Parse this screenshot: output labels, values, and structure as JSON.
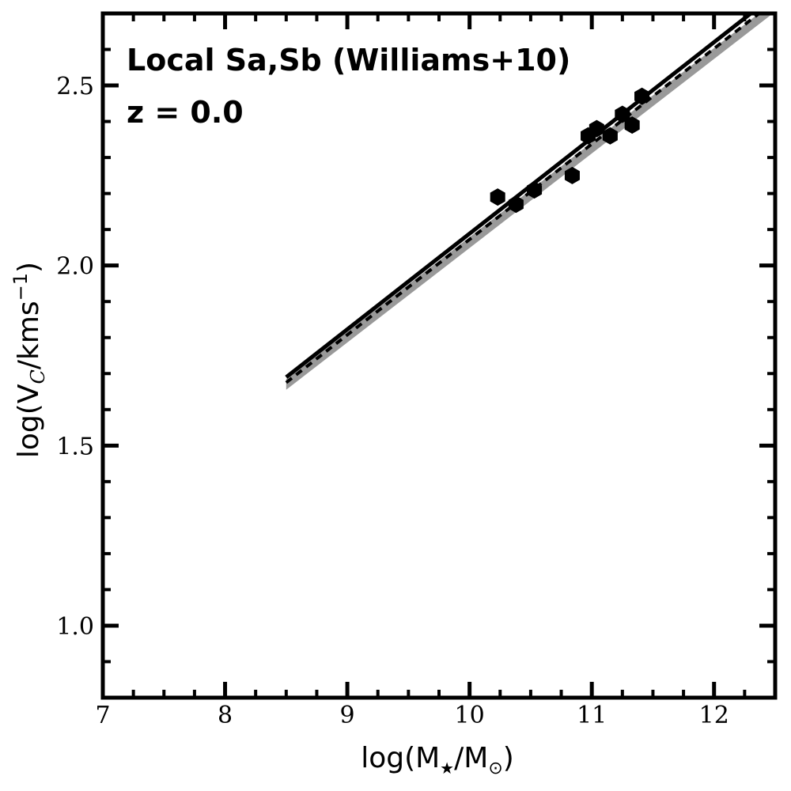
{
  "chart_data": {
    "type": "scatter",
    "annotations": [
      "Local Sa,Sb (Williams+10)",
      "z = 0.0"
    ],
    "xlabel_main": "log(M",
    "xlabel_sub1": "★",
    "xlabel_mid": "/M",
    "xlabel_sub2": "⊙",
    "xlabel_end": ")",
    "ylabel_main": "log(V",
    "ylabel_sub": "C",
    "ylabel_mid": "/kms",
    "ylabel_sup": "−1",
    "ylabel_end": ")",
    "xlim": [
      7,
      12.5
    ],
    "ylim": [
      0.8,
      2.7
    ],
    "xticks": [
      {
        "value": 7,
        "label": "7"
      },
      {
        "value": 8,
        "label": "8"
      },
      {
        "value": 9,
        "label": "9"
      },
      {
        "value": 10,
        "label": "10"
      },
      {
        "value": 11,
        "label": "11"
      },
      {
        "value": 12,
        "label": "12"
      }
    ],
    "yticks": [
      {
        "value": 1.0,
        "label": "1.0"
      },
      {
        "value": 1.5,
        "label": "1.5"
      },
      {
        "value": 2.0,
        "label": "2.0"
      },
      {
        "value": 2.5,
        "label": "2.5"
      }
    ],
    "grid": false,
    "points": [
      {
        "x": 10.23,
        "y": 2.19
      },
      {
        "x": 10.38,
        "y": 2.17
      },
      {
        "x": 10.53,
        "y": 2.21
      },
      {
        "x": 10.84,
        "y": 2.25
      },
      {
        "x": 10.97,
        "y": 2.36
      },
      {
        "x": 11.04,
        "y": 2.38
      },
      {
        "x": 11.15,
        "y": 2.36
      },
      {
        "x": 11.25,
        "y": 2.42
      },
      {
        "x": 11.33,
        "y": 2.39
      },
      {
        "x": 11.41,
        "y": 2.47
      }
    ],
    "lines": [
      {
        "style": "band",
        "color": "#999999",
        "x": [
          8.5,
          12.5
        ],
        "y_low": [
          1.655,
          2.705
        ],
        "y_high": [
          1.685,
          2.735
        ]
      },
      {
        "style": "solid",
        "color": "#000000",
        "x": [
          8.5,
          12.3
        ],
        "y": [
          1.69,
          2.7
        ]
      },
      {
        "style": "dashed",
        "color": "#000000",
        "x": [
          8.5,
          12.5
        ],
        "y": [
          1.675,
          2.735
        ]
      }
    ],
    "colors": {
      "points": "#000000",
      "band": "#999999",
      "axes": "#000000"
    }
  }
}
